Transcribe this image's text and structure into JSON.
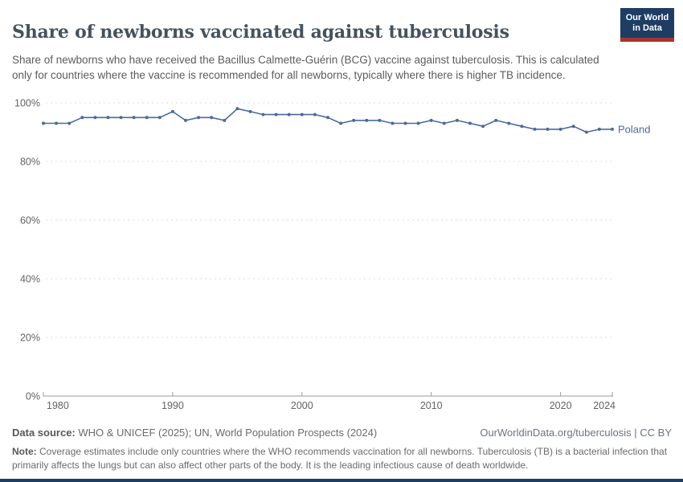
{
  "header": {
    "title": "Share of newborns vaccinated against tuberculosis",
    "subtitle": "Share of newborns who have received the Bacillus Calmette-Guérin (BCG) vaccine against tuberculosis. This is calculated only for countries where the vaccine is recommended for all newborns, typically where there is higher TB incidence.",
    "logo": {
      "text": "Our World\nin Data",
      "bg_color": "#1d3d63",
      "stripe_color": "#a8352d"
    }
  },
  "chart_data": {
    "type": "line",
    "title": "Share of newborns vaccinated against tuberculosis",
    "xlabel": "",
    "ylabel": "",
    "ylim": [
      0,
      100
    ],
    "yticks": [
      0,
      20,
      40,
      60,
      80,
      100
    ],
    "ytick_suffix": "%",
    "xticks": [
      1980,
      1990,
      2000,
      2010,
      2020,
      2024
    ],
    "grid": "horizontal-dashed",
    "legend_position": "end-of-line",
    "x": [
      1980,
      1981,
      1982,
      1983,
      1984,
      1985,
      1986,
      1987,
      1988,
      1989,
      1990,
      1991,
      1992,
      1993,
      1994,
      1995,
      1996,
      1997,
      1998,
      1999,
      2000,
      2001,
      2002,
      2003,
      2004,
      2005,
      2006,
      2007,
      2008,
      2009,
      2010,
      2011,
      2012,
      2013,
      2014,
      2015,
      2016,
      2017,
      2018,
      2019,
      2020,
      2021,
      2022,
      2023,
      2024
    ],
    "series": [
      {
        "name": "Poland",
        "color": "#4c6a9c",
        "values": [
          93,
          93,
          93,
          95,
          95,
          95,
          95,
          95,
          95,
          95,
          97,
          94,
          95,
          95,
          94,
          98,
          97,
          96,
          96,
          96,
          96,
          96,
          95,
          93,
          94,
          94,
          94,
          93,
          93,
          93,
          94,
          93,
          94,
          93,
          92,
          94,
          93,
          92,
          91,
          91,
          91,
          92,
          90,
          91,
          91
        ]
      }
    ]
  },
  "footer": {
    "datasource_label": "Data source:",
    "datasource_text": " WHO & UNICEF (2025); UN, World Population Prospects (2024)",
    "link_text": "OurWorldinData.org/tuberculosis | CC BY",
    "note_label": "Note:",
    "note_text": " Coverage estimates include only countries where the WHO recommends vaccination for all newborns. Tuberculosis (TB) is a bacterial infection that primarily affects the lungs but can also affect other parts of the body. It is the leading infectious cause of death worldwide."
  }
}
